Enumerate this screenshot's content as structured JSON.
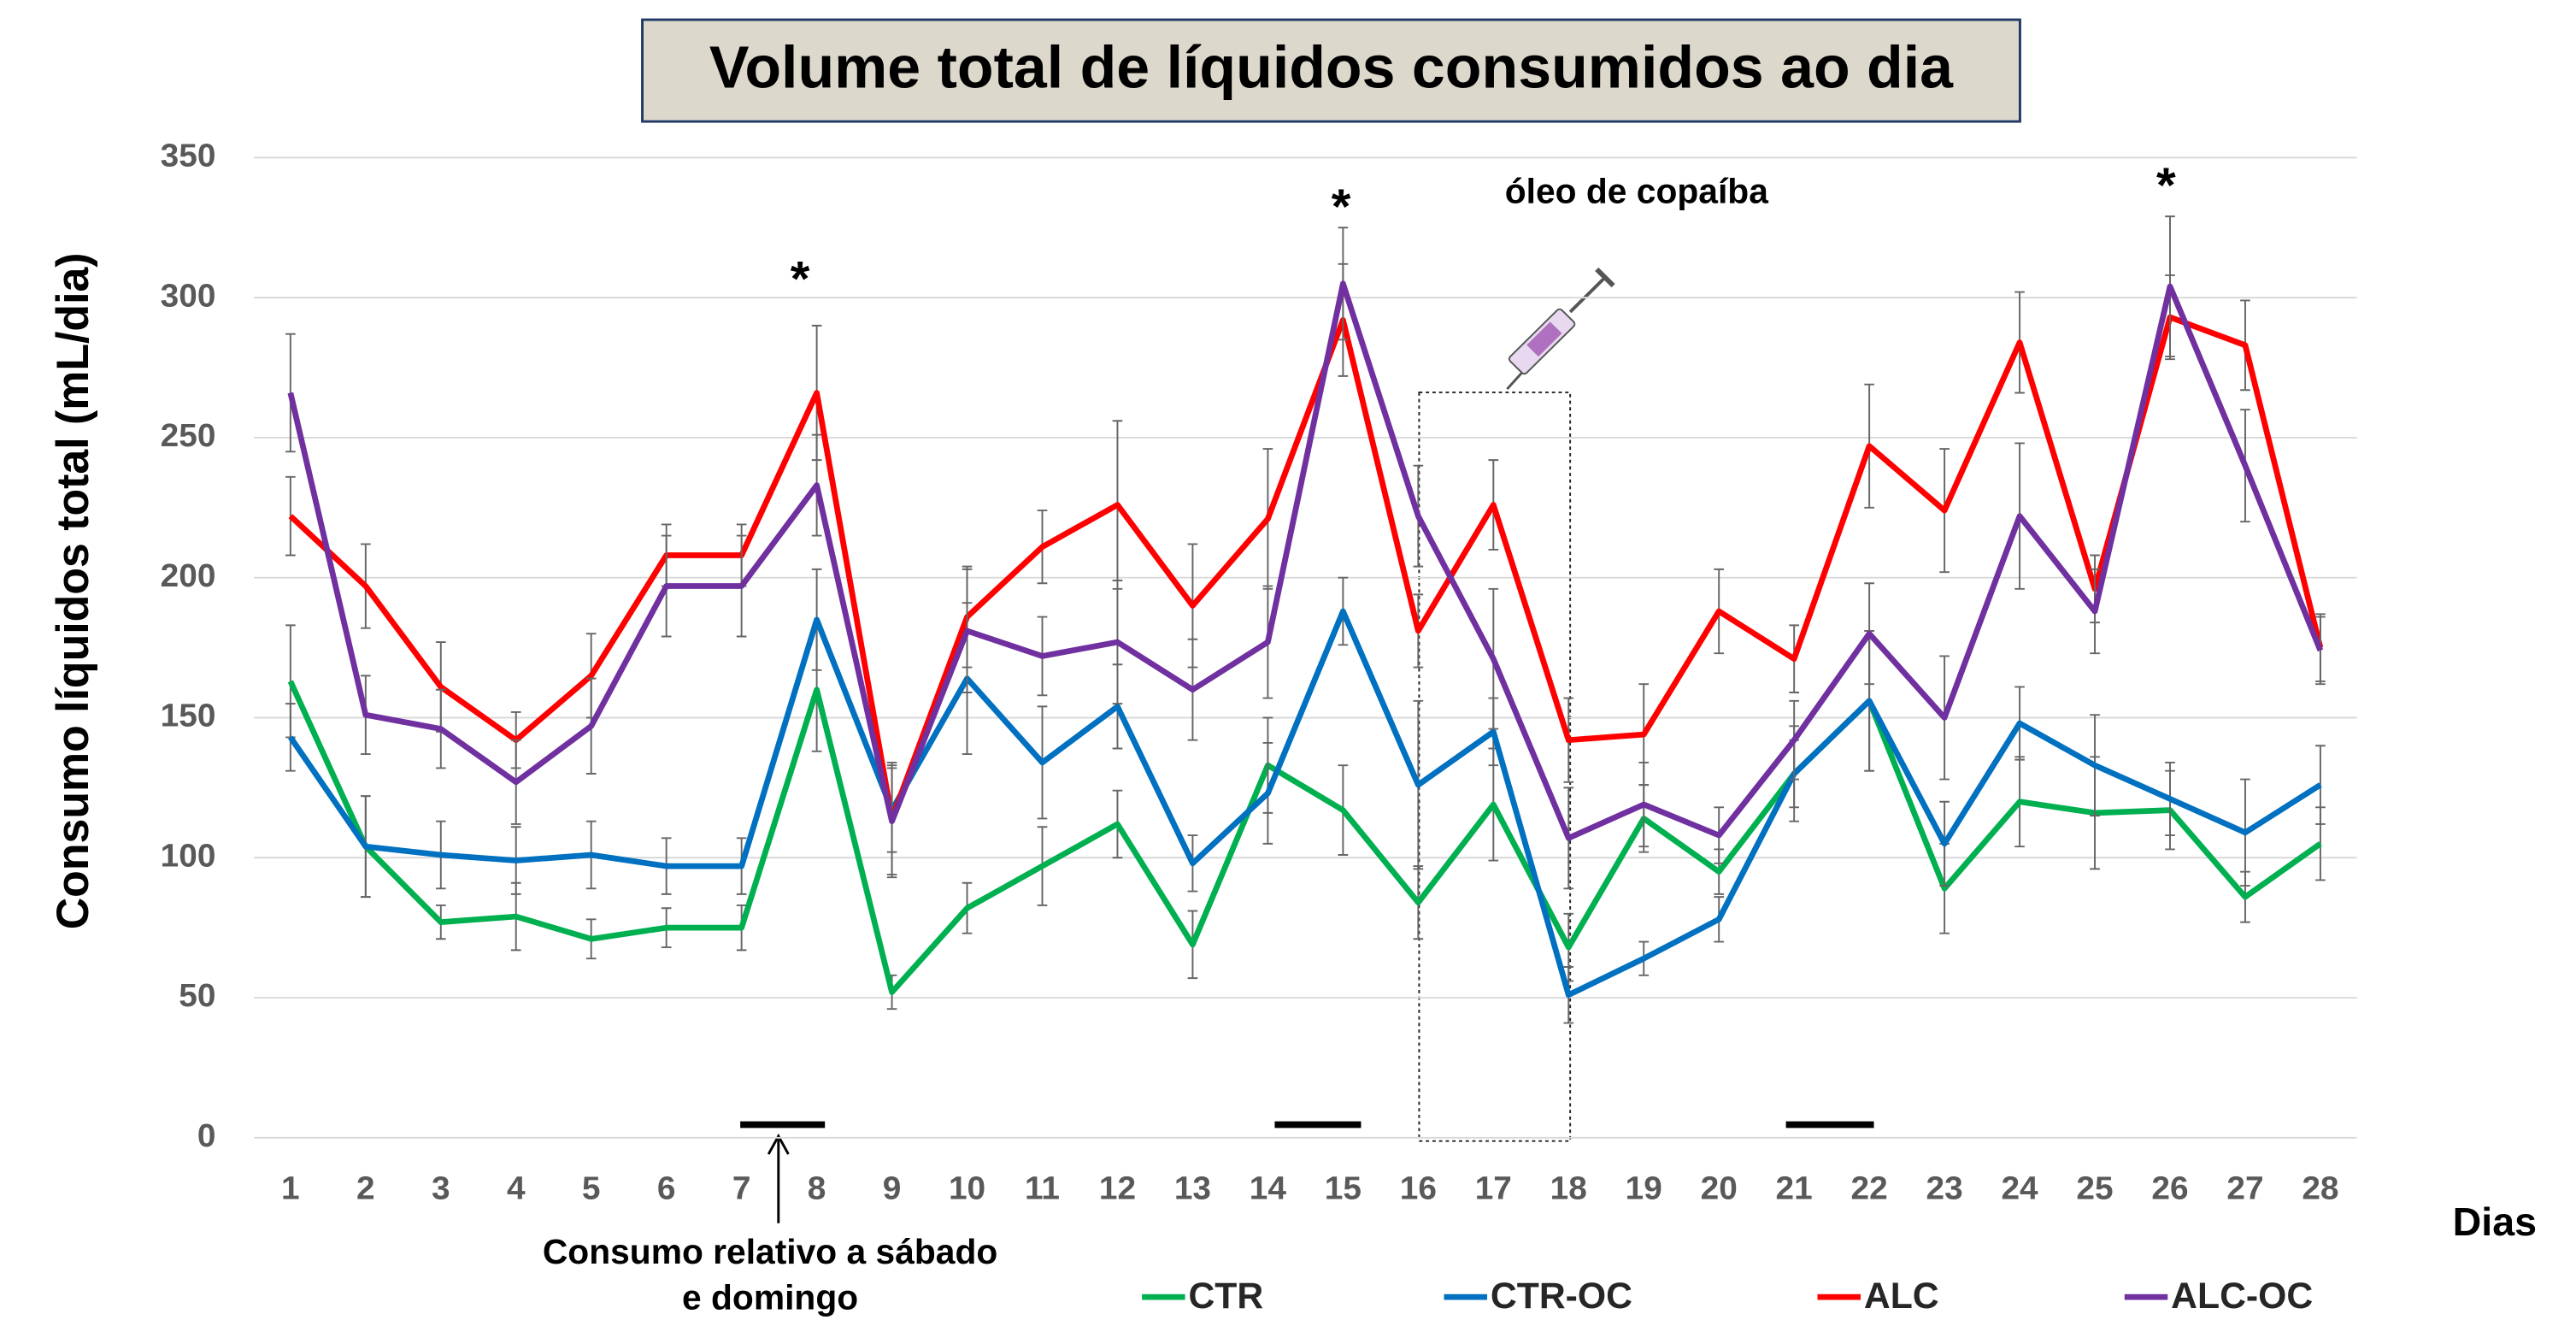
{
  "chart_data": {
    "type": "line",
    "title": "Volume total de líquidos consumidos ao dia",
    "y_label": "Consumo líquidos total (mL/dia)",
    "x_label": "Dias",
    "categories": [
      "1",
      "2",
      "3",
      "4",
      "5",
      "6",
      "7",
      "8",
      "9",
      "10",
      "11",
      "12",
      "13",
      "14",
      "15",
      "16",
      "17",
      "18",
      "19",
      "20",
      "21",
      "22",
      "23",
      "24",
      "25",
      "26",
      "27",
      "28"
    ],
    "ylim": [
      0,
      350
    ],
    "yticks": [
      0,
      50,
      100,
      150,
      200,
      250,
      300,
      350
    ],
    "grid": true,
    "series": [
      {
        "name": "CTR",
        "color": "#00b050",
        "values": [
          163,
          104,
          77,
          79,
          71,
          75,
          75,
          160,
          52,
          82,
          97,
          112,
          69,
          133,
          117,
          84,
          119,
          68,
          114,
          95,
          130,
          156,
          89,
          120,
          116,
          117,
          86,
          105
        ],
        "errors": [
          20,
          18,
          6,
          12,
          7,
          7,
          8,
          22,
          6,
          9,
          14,
          12,
          12,
          17,
          16,
          13,
          20,
          12,
          12,
          8,
          17,
          25,
          16,
          16,
          20,
          14,
          9,
          13
        ]
      },
      {
        "name": "CTR-OC",
        "color": "#0070c0",
        "values": [
          143,
          104,
          101,
          99,
          101,
          97,
          97,
          185,
          117,
          164,
          134,
          154,
          98,
          123,
          188,
          126,
          145,
          51,
          64,
          78,
          130,
          156,
          105,
          148,
          133,
          121,
          109,
          126
        ],
        "errors": [
          12,
          18,
          12,
          12,
          12,
          10,
          10,
          18,
          15,
          27,
          20,
          15,
          10,
          18,
          12,
          30,
          12,
          10,
          6,
          8,
          12,
          25,
          15,
          13,
          18,
          13,
          19,
          14
        ]
      },
      {
        "name": "ALC",
        "color": "#ff0000",
        "values": [
          222,
          197,
          161,
          142,
          165,
          208,
          208,
          266,
          114,
          186,
          211,
          226,
          190,
          221,
          292,
          181,
          226,
          142,
          144,
          188,
          171,
          247,
          224,
          284,
          196,
          293,
          283,
          175
        ],
        "errors": [
          14,
          15,
          16,
          10,
          15,
          11,
          11,
          24,
          20,
          18,
          13,
          30,
          22,
          25,
          20,
          13,
          16,
          15,
          18,
          15,
          12,
          22,
          22,
          18,
          12,
          15,
          16,
          12
        ]
      },
      {
        "name": "ALC-OC",
        "color": "#7030a0",
        "values": [
          266,
          151,
          146,
          127,
          147,
          197,
          197,
          233,
          113,
          181,
          172,
          177,
          160,
          177,
          305,
          222,
          171,
          107,
          119,
          108,
          142,
          180,
          150,
          222,
          188,
          304,
          240,
          174
        ],
        "errors": [
          21,
          14,
          14,
          15,
          17,
          18,
          18,
          18,
          20,
          22,
          14,
          22,
          18,
          20,
          20,
          18,
          25,
          18,
          15,
          10,
          14,
          18,
          22,
          26,
          15,
          25,
          20,
          12
        ]
      }
    ],
    "annotations": [
      "*",
      "*",
      "*",
      "óleo de copaíba",
      "Consumo relativo a sábado",
      "e domingo"
    ]
  }
}
